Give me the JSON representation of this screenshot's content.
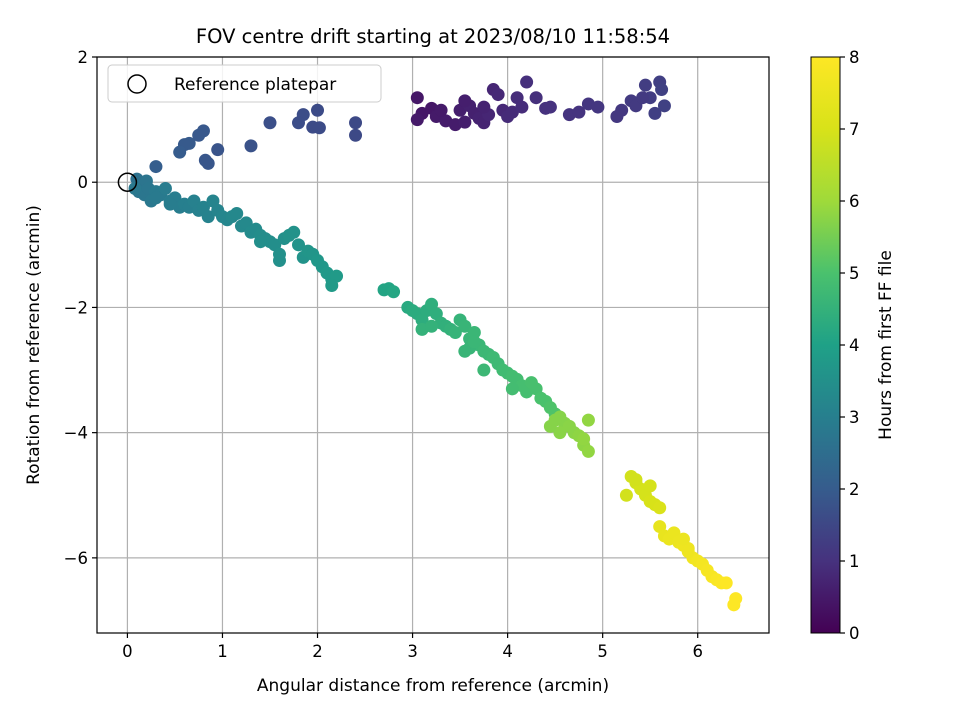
{
  "chart_data": {
    "type": "scatter",
    "title": "FOV centre drift starting at 2023/08/10 11:58:54",
    "xlabel": "Angular distance from reference (arcmin)",
    "ylabel": "Rotation from reference (arcmin)",
    "xlim": [
      -0.32,
      6.75
    ],
    "ylim": [
      -7.2,
      2.0
    ],
    "xticks": [
      0,
      1,
      2,
      3,
      4,
      5,
      6
    ],
    "xtick_labels": [
      "0",
      "1",
      "2",
      "3",
      "4",
      "5",
      "6"
    ],
    "yticks": [
      2,
      0,
      -2,
      -4,
      -6
    ],
    "ytick_labels": [
      "2",
      "0",
      "−2",
      "−4",
      "−6"
    ],
    "grid": true,
    "legend": {
      "location": "upper-left",
      "entries": [
        "Reference platepar"
      ]
    },
    "reference_point": {
      "x": 0,
      "y": 0
    },
    "colorbar": {
      "label": "Hours from first FF file",
      "colormap": "viridis",
      "range": [
        0,
        8
      ],
      "ticks": [
        0,
        1,
        2,
        3,
        4,
        5,
        6,
        7,
        8
      ],
      "tick_labels": [
        "0",
        "1",
        "2",
        "3",
        "4",
        "5",
        "6",
        "7",
        "8"
      ]
    },
    "series": [
      {
        "color_by": "hours",
        "points": [
          [
            3.05,
            1.35,
            0.45
          ],
          [
            3.1,
            1.1,
            0.45
          ],
          [
            3.2,
            1.18,
            0.45
          ],
          [
            3.05,
            1.0,
            0.5
          ],
          [
            3.25,
            1.05,
            0.5
          ],
          [
            3.35,
            0.98,
            0.55
          ],
          [
            3.45,
            0.92,
            0.55
          ],
          [
            3.55,
            0.96,
            0.6
          ],
          [
            3.5,
            1.15,
            0.6
          ],
          [
            3.6,
            1.22,
            0.65
          ],
          [
            3.65,
            1.1,
            0.65
          ],
          [
            3.7,
            1.02,
            0.7
          ],
          [
            3.75,
            0.95,
            0.7
          ],
          [
            3.8,
            1.08,
            0.75
          ],
          [
            3.85,
            1.48,
            0.75
          ],
          [
            3.9,
            1.4,
            0.8
          ],
          [
            3.95,
            1.15,
            0.8
          ],
          [
            4.0,
            1.05,
            0.85
          ],
          [
            4.05,
            1.12,
            0.85
          ],
          [
            4.1,
            1.35,
            0.9
          ],
          [
            4.15,
            1.2,
            0.9
          ],
          [
            4.2,
            1.6,
            0.95
          ],
          [
            4.3,
            1.35,
            0.95
          ],
          [
            4.4,
            1.18,
            1.0
          ],
          [
            4.45,
            1.2,
            1.0
          ],
          [
            4.65,
            1.08,
            1.05
          ],
          [
            4.75,
            1.12,
            1.05
          ],
          [
            4.85,
            1.25,
            1.1
          ],
          [
            4.95,
            1.2,
            1.1
          ],
          [
            5.15,
            1.05,
            1.15
          ],
          [
            5.2,
            1.15,
            1.15
          ],
          [
            5.3,
            1.3,
            1.2
          ],
          [
            5.35,
            1.22,
            1.2
          ],
          [
            5.45,
            1.55,
            1.25
          ],
          [
            5.5,
            1.35,
            1.25
          ],
          [
            5.55,
            1.1,
            1.3
          ],
          [
            5.6,
            1.6,
            1.3
          ],
          [
            5.62,
            1.48,
            1.35
          ],
          [
            5.65,
            1.22,
            1.35
          ],
          [
            3.55,
            1.3,
            0.6
          ],
          [
            3.75,
            1.2,
            0.7
          ],
          [
            3.3,
            1.15,
            0.5
          ],
          [
            5.42,
            1.35,
            1.2
          ],
          [
            2.4,
            0.95,
            1.55
          ],
          [
            2.4,
            0.75,
            1.55
          ],
          [
            2.0,
            1.15,
            1.6
          ],
          [
            1.95,
            0.88,
            1.6
          ],
          [
            2.02,
            0.87,
            1.6
          ],
          [
            1.85,
            1.08,
            1.65
          ],
          [
            1.8,
            0.95,
            1.65
          ],
          [
            1.5,
            0.95,
            1.7
          ],
          [
            1.3,
            0.58,
            1.75
          ],
          [
            0.95,
            0.52,
            1.8
          ],
          [
            0.85,
            0.3,
            1.85
          ],
          [
            0.82,
            0.35,
            1.85
          ],
          [
            0.8,
            0.82,
            1.9
          ],
          [
            0.75,
            0.75,
            1.9
          ],
          [
            0.65,
            0.62,
            1.95
          ],
          [
            0.6,
            0.6,
            1.95
          ],
          [
            0.55,
            0.48,
            2.0
          ],
          [
            0.3,
            0.25,
            2.05
          ],
          [
            0.1,
            0.05,
            2.6
          ],
          [
            0.15,
            -0.05,
            2.65
          ],
          [
            0.2,
            0.02,
            2.7
          ],
          [
            0.12,
            -0.15,
            2.7
          ],
          [
            0.18,
            -0.2,
            2.75
          ],
          [
            0.22,
            -0.1,
            2.75
          ],
          [
            0.25,
            -0.3,
            2.8
          ],
          [
            0.08,
            -0.1,
            2.8
          ],
          [
            0.3,
            -0.15,
            2.85
          ],
          [
            0.35,
            -0.2,
            2.85
          ],
          [
            0.4,
            -0.1,
            2.9
          ],
          [
            0.45,
            -0.3,
            2.9
          ],
          [
            0.5,
            -0.25,
            2.95
          ],
          [
            0.55,
            -0.4,
            2.95
          ],
          [
            0.6,
            -0.35,
            3.0
          ],
          [
            0.65,
            -0.4,
            3.0
          ],
          [
            0.7,
            -0.3,
            3.05
          ],
          [
            0.75,
            -0.45,
            3.05
          ],
          [
            0.8,
            -0.4,
            3.1
          ],
          [
            0.85,
            -0.55,
            3.1
          ],
          [
            0.9,
            -0.3,
            3.15
          ],
          [
            0.95,
            -0.45,
            3.15
          ],
          [
            1.0,
            -0.55,
            3.2
          ],
          [
            1.05,
            -0.6,
            3.2
          ],
          [
            1.1,
            -0.55,
            3.25
          ],
          [
            1.15,
            -0.5,
            3.25
          ],
          [
            1.2,
            -0.7,
            3.3
          ],
          [
            1.25,
            -0.65,
            3.3
          ],
          [
            1.3,
            -0.8,
            3.35
          ],
          [
            1.35,
            -0.75,
            3.35
          ],
          [
            1.4,
            -0.85,
            3.4
          ],
          [
            1.45,
            -0.9,
            3.4
          ],
          [
            1.5,
            -0.95,
            3.45
          ],
          [
            1.55,
            -1.0,
            3.45
          ],
          [
            1.6,
            -1.15,
            3.5
          ],
          [
            1.65,
            -0.9,
            3.5
          ],
          [
            1.7,
            -0.85,
            3.55
          ],
          [
            1.75,
            -0.8,
            3.55
          ],
          [
            1.8,
            -1.0,
            3.6
          ],
          [
            1.85,
            -1.2,
            3.6
          ],
          [
            1.9,
            -1.1,
            3.65
          ],
          [
            1.95,
            -1.15,
            3.65
          ],
          [
            2.0,
            -1.25,
            3.7
          ],
          [
            2.05,
            -1.35,
            3.7
          ],
          [
            2.1,
            -1.45,
            3.75
          ],
          [
            2.15,
            -1.55,
            3.75
          ],
          [
            2.2,
            -1.5,
            3.8
          ],
          [
            2.15,
            -1.65,
            3.8
          ],
          [
            1.4,
            -0.95,
            3.45
          ],
          [
            1.6,
            -1.25,
            3.5
          ],
          [
            0.45,
            -0.35,
            2.95
          ],
          [
            0.3,
            -0.25,
            2.85
          ],
          [
            2.7,
            -1.72,
            4.1
          ],
          [
            2.75,
            -1.7,
            4.1
          ],
          [
            2.8,
            -1.75,
            4.15
          ],
          [
            2.95,
            -2.0,
            4.25
          ],
          [
            3.0,
            -2.05,
            4.3
          ],
          [
            3.05,
            -2.1,
            4.3
          ],
          [
            3.1,
            -2.2,
            4.35
          ],
          [
            3.15,
            -2.05,
            4.35
          ],
          [
            3.2,
            -1.95,
            4.4
          ],
          [
            3.25,
            -2.1,
            4.4
          ],
          [
            3.3,
            -2.25,
            4.45
          ],
          [
            3.35,
            -2.3,
            4.45
          ],
          [
            3.1,
            -2.35,
            4.5
          ],
          [
            3.2,
            -2.3,
            4.5
          ],
          [
            3.4,
            -2.35,
            4.5
          ],
          [
            3.45,
            -2.4,
            4.55
          ],
          [
            3.5,
            -2.2,
            4.55
          ],
          [
            3.55,
            -2.3,
            4.6
          ],
          [
            3.6,
            -2.5,
            4.6
          ],
          [
            3.65,
            -2.4,
            4.65
          ],
          [
            3.7,
            -2.6,
            4.65
          ],
          [
            3.75,
            -2.7,
            4.7
          ],
          [
            3.8,
            -2.75,
            4.7
          ],
          [
            3.85,
            -2.8,
            4.75
          ],
          [
            3.9,
            -2.9,
            4.75
          ],
          [
            3.95,
            -3.0,
            4.8
          ],
          [
            4.0,
            -3.05,
            4.8
          ],
          [
            4.05,
            -3.1,
            4.85
          ],
          [
            4.1,
            -3.15,
            4.85
          ],
          [
            4.15,
            -3.25,
            4.9
          ],
          [
            4.2,
            -3.35,
            4.9
          ],
          [
            4.25,
            -3.2,
            4.95
          ],
          [
            4.3,
            -3.3,
            4.95
          ],
          [
            4.35,
            -3.45,
            5.0
          ],
          [
            4.4,
            -3.5,
            5.0
          ],
          [
            4.45,
            -3.6,
            5.05
          ],
          [
            4.5,
            -3.7,
            5.05
          ],
          [
            3.6,
            -2.65,
            4.6
          ],
          [
            3.75,
            -3.0,
            4.7
          ],
          [
            4.05,
            -3.3,
            4.85
          ],
          [
            3.65,
            -2.55,
            4.65
          ],
          [
            3.55,
            -2.7,
            4.6
          ],
          [
            4.55,
            -3.75,
            5.7
          ],
          [
            4.6,
            -3.85,
            5.7
          ],
          [
            4.65,
            -3.9,
            5.75
          ],
          [
            4.7,
            -4.0,
            5.75
          ],
          [
            4.75,
            -4.05,
            5.8
          ],
          [
            4.8,
            -4.2,
            5.8
          ],
          [
            4.85,
            -4.3,
            5.85
          ],
          [
            4.85,
            -3.8,
            5.85
          ],
          [
            4.8,
            -4.1,
            5.85
          ],
          [
            4.55,
            -4.0,
            5.75
          ],
          [
            4.45,
            -3.9,
            5.7
          ],
          [
            4.5,
            -3.8,
            5.7
          ],
          [
            5.3,
            -4.7,
            6.9
          ],
          [
            5.35,
            -4.8,
            6.9
          ],
          [
            5.4,
            -4.9,
            6.95
          ],
          [
            5.45,
            -5.0,
            6.95
          ],
          [
            5.5,
            -5.1,
            7.0
          ],
          [
            5.55,
            -5.15,
            7.0
          ],
          [
            5.6,
            -5.2,
            7.05
          ],
          [
            5.25,
            -5.0,
            6.9
          ],
          [
            5.35,
            -4.75,
            6.9
          ],
          [
            5.5,
            -4.85,
            6.95
          ],
          [
            5.6,
            -5.5,
            7.4
          ],
          [
            5.65,
            -5.65,
            7.45
          ],
          [
            5.7,
            -5.7,
            7.5
          ],
          [
            5.75,
            -5.6,
            7.5
          ],
          [
            5.8,
            -5.75,
            7.55
          ],
          [
            5.85,
            -5.8,
            7.6
          ],
          [
            5.9,
            -5.85,
            7.6
          ],
          [
            5.95,
            -6.0,
            7.65
          ],
          [
            6.0,
            -6.05,
            7.7
          ],
          [
            6.05,
            -6.1,
            7.75
          ],
          [
            6.1,
            -6.2,
            7.8
          ],
          [
            6.15,
            -6.3,
            7.85
          ],
          [
            6.2,
            -6.35,
            7.9
          ],
          [
            6.25,
            -6.4,
            7.95
          ],
          [
            6.3,
            -6.4,
            8.0
          ],
          [
            6.4,
            -6.65,
            8.0
          ],
          [
            6.38,
            -6.75,
            8.0
          ],
          [
            5.9,
            -5.9,
            7.6
          ],
          [
            5.85,
            -5.7,
            7.55
          ]
        ]
      }
    ]
  }
}
